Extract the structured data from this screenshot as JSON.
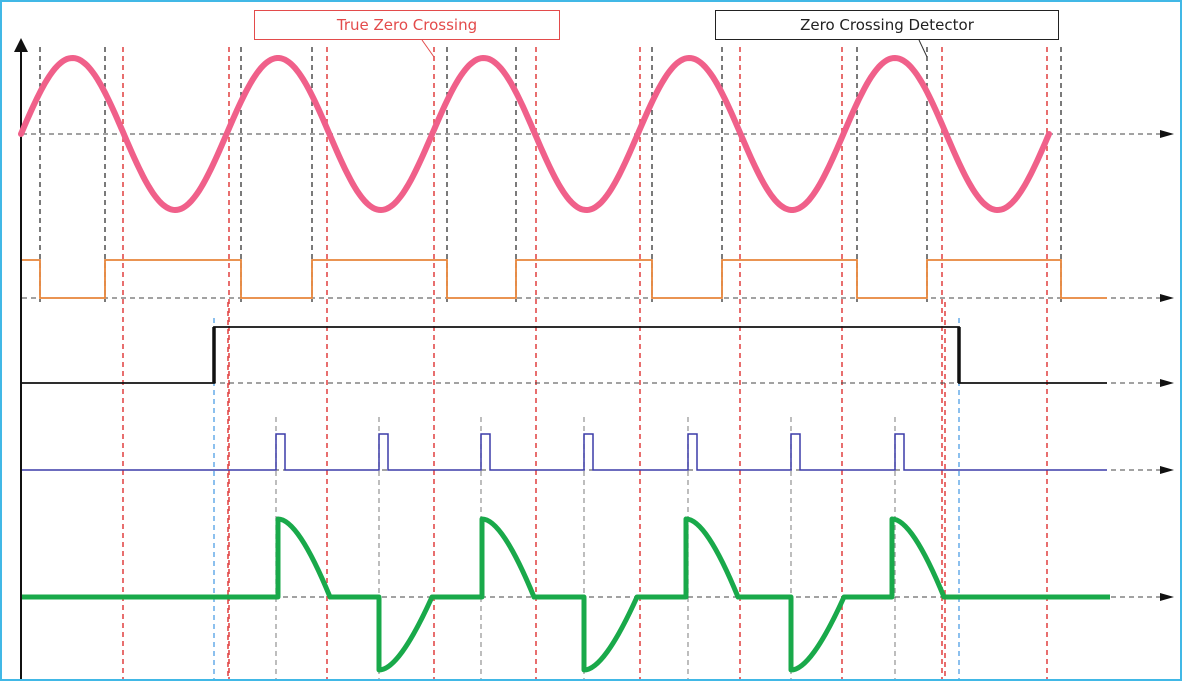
{
  "labels": {
    "true_zero_crossing": "True Zero Crossing",
    "zero_crossing_detector": "Zero Crossing Detector"
  },
  "colors": {
    "frame": "#41b8e6",
    "sine": "#f0608a",
    "square": "#e8853a",
    "enable": "#111111",
    "pulse": "#3b3ba8",
    "output": "#19a94a",
    "true_marker": "#e34b4b",
    "detector_marker": "#333333",
    "blue_marker": "#6fb1ea",
    "pulse_marker": "#9a9a9a"
  }
}
